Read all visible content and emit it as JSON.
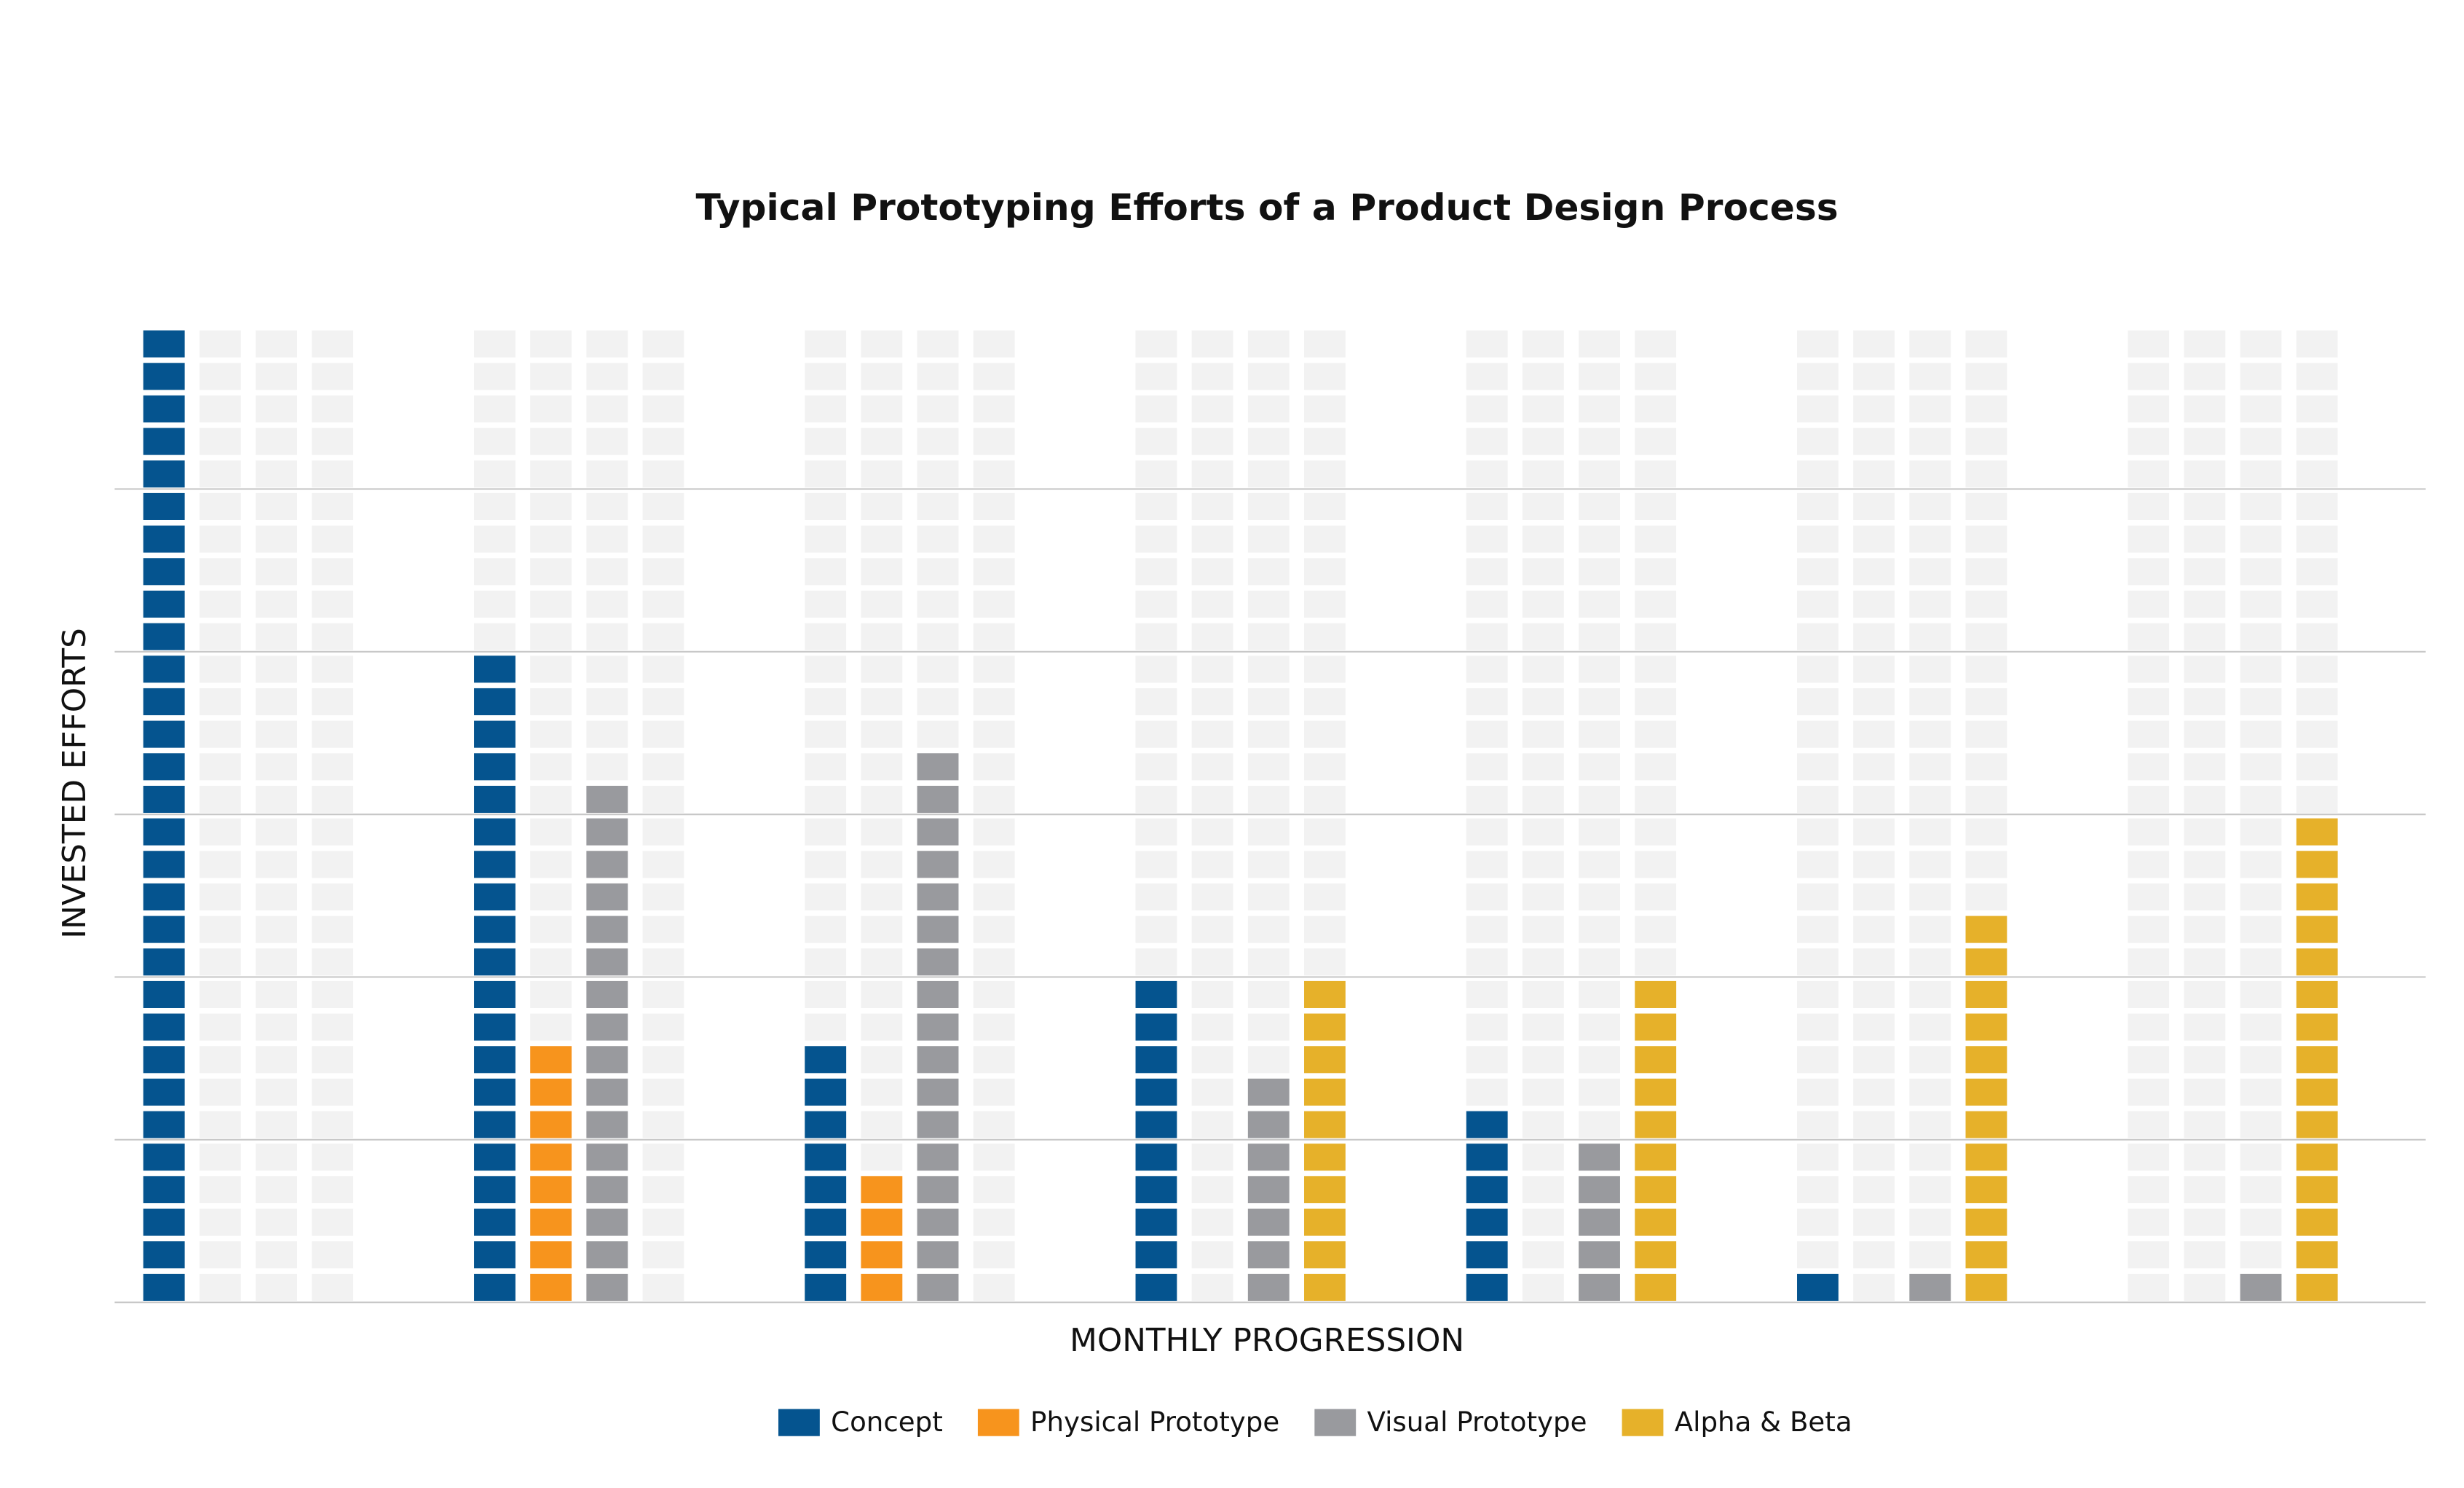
{
  "chart_data": {
    "type": "waffle_bar",
    "title": "Typical Prototyping Efforts of a Product Design Process",
    "x_label": "MONTHLY PROGRESSION",
    "y_label": "INVESTED EFFORTS",
    "categories": [
      null,
      null,
      null,
      null,
      null,
      null,
      null
    ],
    "series": [
      {
        "name": "Concept",
        "color": "#05548f",
        "values": [
          30,
          20,
          8,
          10,
          6,
          1,
          0
        ]
      },
      {
        "name": "Physical Prototype",
        "color": "#f7941d",
        "values": [
          0,
          8,
          4,
          0,
          0,
          0,
          0
        ]
      },
      {
        "name": "Visual Prototype",
        "color": "#999a9e",
        "values": [
          0,
          16,
          17,
          7,
          5,
          1,
          1
        ]
      },
      {
        "name": "Alpha & Beta",
        "color": "#e6b12a",
        "values": [
          0,
          0,
          0,
          10,
          10,
          12,
          15
        ]
      }
    ],
    "ylim": [
      0,
      30
    ],
    "yticks": [
      0,
      5,
      10,
      15,
      20,
      25,
      30
    ],
    "grid": true
  }
}
